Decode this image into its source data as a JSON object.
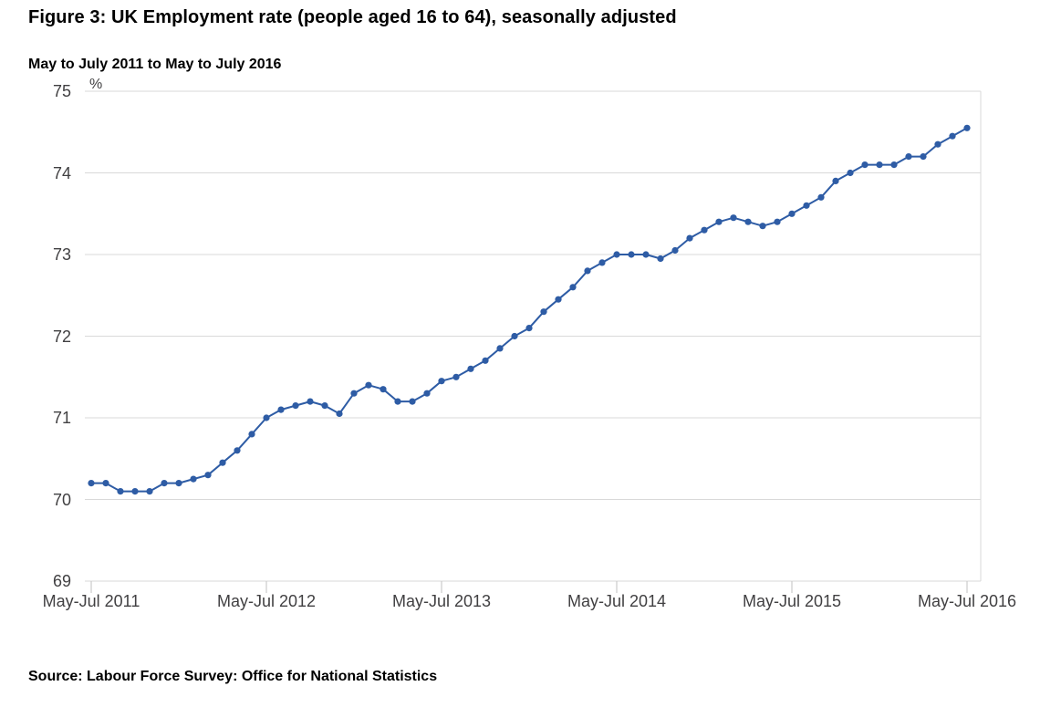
{
  "page": {
    "title": "Figure 3: UK Employment rate (people aged 16 to 64), seasonally adjusted",
    "subtitle": "May to July 2011 to May to July 2016",
    "source": "Source: Labour Force Survey: Office for National Statistics"
  },
  "chart_data": {
    "type": "line",
    "title": "Figure 3: UK Employment rate (people aged 16 to 64), seasonally adjusted",
    "subtitle": "May to July 2011 to May to July 2016",
    "unit_label": "%",
    "xlabel": "",
    "ylabel": "%",
    "ylim": [
      69,
      75
    ],
    "y_ticks": [
      69,
      70,
      71,
      72,
      73,
      74,
      75
    ],
    "x_tick_labels": [
      "May-Jul 2011",
      "May-Jul 2012",
      "May-Jul 2013",
      "May-Jul 2014",
      "May-Jul 2015",
      "May-Jul 2016"
    ],
    "grid": "horizontal",
    "legend": "none",
    "marker": "circle",
    "series": [
      {
        "name": "Employment rate",
        "values": [
          70.2,
          70.2,
          70.1,
          70.1,
          70.1,
          70.2,
          70.2,
          70.25,
          70.3,
          70.45,
          70.6,
          70.8,
          71.0,
          71.1,
          71.15,
          71.2,
          71.15,
          71.05,
          71.3,
          71.4,
          71.35,
          71.2,
          71.2,
          71.3,
          71.45,
          71.5,
          71.6,
          71.7,
          71.85,
          72.0,
          72.1,
          72.3,
          72.45,
          72.6,
          72.8,
          72.9,
          73.0,
          73.0,
          73.0,
          72.95,
          73.05,
          73.2,
          73.3,
          73.4,
          73.45,
          73.4,
          73.35,
          73.4,
          73.5,
          73.6,
          73.7,
          73.9,
          74.0,
          74.1,
          74.1,
          74.1,
          74.2,
          74.2,
          74.35,
          74.45,
          74.55
        ]
      }
    ],
    "colors": {
      "line": "#2e5ca5",
      "marker": "#2e5ca5",
      "gridline": "#d9d9d9",
      "tick": "#c2c2c2",
      "axis_text": "#414042"
    }
  }
}
